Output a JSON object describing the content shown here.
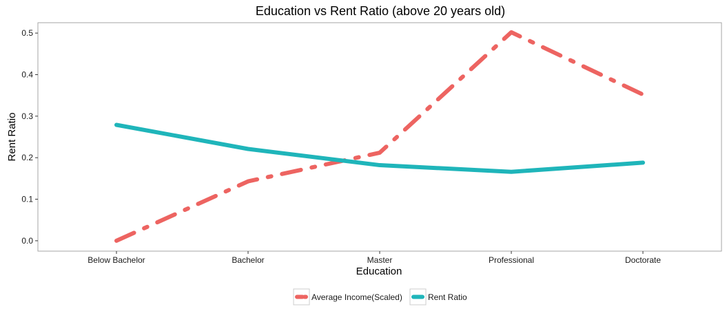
{
  "chart_data": {
    "type": "line",
    "title": "Education vs Rent Ratio (above 20 years old)",
    "xlabel": "Education",
    "ylabel": "Rent Ratio",
    "categories": [
      "Below Bachelor",
      "Bachelor",
      "Master",
      "Professional",
      "Doctorate"
    ],
    "ylim": [
      -0.025,
      0.525
    ],
    "yticks": [
      0.0,
      0.1,
      0.2,
      0.3,
      0.4,
      0.5
    ],
    "ytick_labels": [
      "0.0",
      "0.1",
      "0.2",
      "0.3",
      "0.4",
      "0.5"
    ],
    "grid": false,
    "legend_position": "bottom",
    "series": [
      {
        "name": "Average Income(Scaled)",
        "values": [
          0.0,
          0.143,
          0.212,
          0.502,
          0.352
        ],
        "color": "#ED6461",
        "style": "dashed"
      },
      {
        "name": "Rent Ratio",
        "values": [
          0.279,
          0.221,
          0.182,
          0.166,
          0.188
        ],
        "color": "#1FB5BA",
        "style": "solid"
      }
    ]
  }
}
